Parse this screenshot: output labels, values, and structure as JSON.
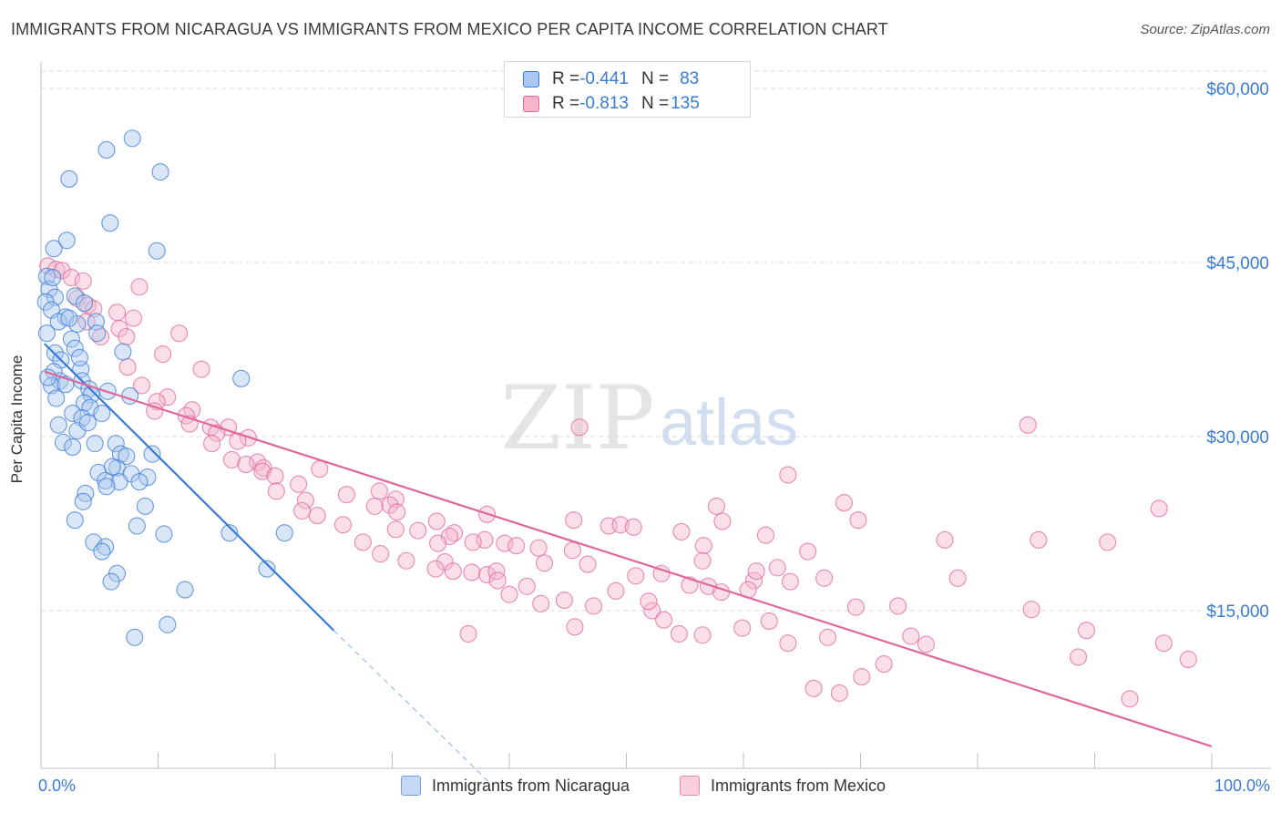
{
  "title": "IMMIGRANTS FROM NICARAGUA VS IMMIGRANTS FROM MEXICO PER CAPITA INCOME CORRELATION CHART",
  "source": "Source: ZipAtlas.com",
  "watermark": {
    "zip": "ZIP",
    "atlas": "atlas"
  },
  "colors": {
    "blue": "#3a7bd5",
    "blue_fill": "#aac8f0",
    "pink": "#e0679a",
    "pink_fill": "#f5b5cc",
    "grid": "#dddddd",
    "accent_text": "#3a7bd5"
  },
  "legend": {
    "rows": [
      {
        "r_label": "R = ",
        "r_value": "-0.441",
        "n_label": "N = ",
        "n_value": "83"
      },
      {
        "r_label": "R = ",
        "r_value": "-0.813",
        "n_label": "N = ",
        "n_value": "135"
      }
    ]
  },
  "bottom_legend": [
    "Immigrants from Nicaragua",
    "Immigrants from Mexico"
  ],
  "x_axis": {
    "min_label": "0.0%",
    "max_label": "100.0%"
  },
  "chart_data": {
    "type": "scatter",
    "title": "IMMIGRANTS FROM NICARAGUA VS IMMIGRANTS FROM MEXICO PER CAPITA INCOME CORRELATION CHART",
    "xlabel": "",
    "ylabel": "Per Capita Income",
    "xlim": [
      0,
      100
    ],
    "ylim": [
      0,
      62000
    ],
    "y_ticks": [
      15000,
      30000,
      45000,
      60000
    ],
    "y_tick_labels": [
      "$15,000",
      "$30,000",
      "$45,000",
      "$60,000"
    ],
    "x_tick_labels": [
      "0.0%",
      "100.0%"
    ],
    "grid": true,
    "legend_position": "top-center",
    "series": [
      {
        "name": "Immigrants from Nicaragua",
        "color": "#3a7bd5",
        "trend": {
          "x": [
            0.3,
            25.0
          ],
          "y": [
            38000,
            13300
          ],
          "dashed_extension_to": [
            38.5,
            0
          ]
        },
        "points": [
          [
            7.8,
            55700
          ],
          [
            5.6,
            54700
          ],
          [
            10.2,
            52800
          ],
          [
            2.4,
            52200
          ],
          [
            5.9,
            48400
          ],
          [
            2.2,
            46900
          ],
          [
            9.9,
            46000
          ],
          [
            1.1,
            46200
          ],
          [
            0.5,
            43800
          ],
          [
            0.7,
            42700
          ],
          [
            1.2,
            42000
          ],
          [
            2.9,
            42100
          ],
          [
            3.7,
            41500
          ],
          [
            0.4,
            41600
          ],
          [
            0.9,
            40900
          ],
          [
            2.1,
            40300
          ],
          [
            1.5,
            39900
          ],
          [
            3.1,
            39700
          ],
          [
            4.7,
            39900
          ],
          [
            0.5,
            38900
          ],
          [
            2.6,
            38400
          ],
          [
            4.8,
            38900
          ],
          [
            2.9,
            37600
          ],
          [
            7.0,
            37300
          ],
          [
            1.2,
            37200
          ],
          [
            1.7,
            36600
          ],
          [
            3.4,
            35800
          ],
          [
            1.1,
            35600
          ],
          [
            1.6,
            34800
          ],
          [
            0.9,
            34400
          ],
          [
            3.5,
            34800
          ],
          [
            4.1,
            34100
          ],
          [
            4.3,
            33600
          ],
          [
            1.3,
            33300
          ],
          [
            7.6,
            33500
          ],
          [
            3.7,
            32900
          ],
          [
            4.2,
            32500
          ],
          [
            2.7,
            32000
          ],
          [
            5.2,
            32000
          ],
          [
            3.5,
            31600
          ],
          [
            1.5,
            31000
          ],
          [
            3.1,
            30500
          ],
          [
            17.1,
            35000
          ],
          [
            1.9,
            29500
          ],
          [
            2.7,
            29100
          ],
          [
            4.6,
            29400
          ],
          [
            6.4,
            29400
          ],
          [
            6.8,
            28500
          ],
          [
            9.5,
            28500
          ],
          [
            7.3,
            28300
          ],
          [
            6.5,
            27300
          ],
          [
            4.9,
            26900
          ],
          [
            7.7,
            26800
          ],
          [
            9.1,
            26500
          ],
          [
            5.5,
            26200
          ],
          [
            6.7,
            26100
          ],
          [
            5.6,
            25700
          ],
          [
            3.8,
            25100
          ],
          [
            3.6,
            24400
          ],
          [
            8.9,
            24000
          ],
          [
            2.9,
            22800
          ],
          [
            8.2,
            22300
          ],
          [
            16.1,
            21700
          ],
          [
            10.5,
            21600
          ],
          [
            20.8,
            21700
          ],
          [
            4.5,
            20900
          ],
          [
            5.5,
            20500
          ],
          [
            5.2,
            20100
          ],
          [
            6.5,
            18200
          ],
          [
            19.3,
            18600
          ],
          [
            6.0,
            17500
          ],
          [
            12.3,
            16800
          ],
          [
            10.8,
            13800
          ],
          [
            8.0,
            12700
          ],
          [
            1.0,
            43700
          ],
          [
            2.4,
            40200
          ],
          [
            3.3,
            36800
          ],
          [
            5.7,
            33900
          ],
          [
            4.0,
            31200
          ],
          [
            0.6,
            35100
          ],
          [
            2.1,
            34500
          ],
          [
            6.1,
            27400
          ],
          [
            8.4,
            26100
          ]
        ]
      },
      {
        "name": "Immigrants from Mexico",
        "color": "#e0679a",
        "trend": {
          "x": [
            0.3,
            100.0
          ],
          "y": [
            35600,
            3300
          ]
        },
        "points": [
          [
            0.6,
            44700
          ],
          [
            1.3,
            44400
          ],
          [
            1.8,
            44300
          ],
          [
            2.6,
            43700
          ],
          [
            3.6,
            43400
          ],
          [
            8.4,
            42900
          ],
          [
            3.1,
            41900
          ],
          [
            4.0,
            41300
          ],
          [
            4.5,
            41000
          ],
          [
            6.5,
            40700
          ],
          [
            7.9,
            40200
          ],
          [
            6.7,
            39300
          ],
          [
            5.1,
            38600
          ],
          [
            11.8,
            38900
          ],
          [
            7.3,
            38600
          ],
          [
            10.4,
            37100
          ],
          [
            7.4,
            36000
          ],
          [
            13.7,
            35800
          ],
          [
            8.6,
            34400
          ],
          [
            10.8,
            33400
          ],
          [
            9.9,
            33000
          ],
          [
            12.9,
            32300
          ],
          [
            9.7,
            32200
          ],
          [
            12.4,
            31800
          ],
          [
            12.7,
            31100
          ],
          [
            14.5,
            30800
          ],
          [
            16.0,
            30800
          ],
          [
            15.0,
            30300
          ],
          [
            17.7,
            29900
          ],
          [
            16.8,
            29600
          ],
          [
            14.6,
            29400
          ],
          [
            46.0,
            30800
          ],
          [
            84.3,
            31000
          ],
          [
            16.3,
            28000
          ],
          [
            18.5,
            27800
          ],
          [
            17.5,
            27600
          ],
          [
            19.0,
            27300
          ],
          [
            23.8,
            27200
          ],
          [
            18.9,
            27000
          ],
          [
            20.0,
            26600
          ],
          [
            22.0,
            25900
          ],
          [
            20.1,
            25300
          ],
          [
            28.9,
            25300
          ],
          [
            26.1,
            25000
          ],
          [
            22.6,
            24500
          ],
          [
            30.3,
            24600
          ],
          [
            29.8,
            24100
          ],
          [
            22.3,
            23600
          ],
          [
            28.5,
            24000
          ],
          [
            23.6,
            23200
          ],
          [
            30.4,
            23500
          ],
          [
            38.1,
            23300
          ],
          [
            33.8,
            22700
          ],
          [
            45.5,
            22800
          ],
          [
            25.8,
            22400
          ],
          [
            30.3,
            22000
          ],
          [
            32.2,
            21900
          ],
          [
            35.3,
            21700
          ],
          [
            34.9,
            21400
          ],
          [
            37.9,
            21100
          ],
          [
            36.9,
            20900
          ],
          [
            33.9,
            20800
          ],
          [
            39.6,
            20800
          ],
          [
            40.6,
            20600
          ],
          [
            42.5,
            20400
          ],
          [
            45.4,
            20200
          ],
          [
            48.5,
            22300
          ],
          [
            49.5,
            22400
          ],
          [
            50.6,
            22200
          ],
          [
            54.7,
            21800
          ],
          [
            56.6,
            20600
          ],
          [
            34.5,
            19200
          ],
          [
            31.2,
            19300
          ],
          [
            33.7,
            18600
          ],
          [
            35.2,
            18400
          ],
          [
            36.8,
            18300
          ],
          [
            38.1,
            18100
          ],
          [
            38.9,
            18400
          ],
          [
            43.0,
            19100
          ],
          [
            46.7,
            19000
          ],
          [
            50.8,
            18000
          ],
          [
            53.0,
            18200
          ],
          [
            55.4,
            17200
          ],
          [
            57.0,
            17100
          ],
          [
            60.9,
            17600
          ],
          [
            62.9,
            18700
          ],
          [
            64.0,
            17500
          ],
          [
            66.9,
            17800
          ],
          [
            69.6,
            15300
          ],
          [
            73.2,
            15400
          ],
          [
            74.3,
            12800
          ],
          [
            72.0,
            10400
          ],
          [
            75.6,
            12100
          ],
          [
            78.3,
            17800
          ],
          [
            77.2,
            21100
          ],
          [
            84.6,
            15100
          ],
          [
            85.2,
            21100
          ],
          [
            88.6,
            11000
          ],
          [
            89.3,
            13300
          ],
          [
            93.0,
            7400
          ],
          [
            91.1,
            20900
          ],
          [
            52.2,
            15000
          ],
          [
            53.2,
            14200
          ],
          [
            54.5,
            13000
          ],
          [
            56.5,
            12900
          ],
          [
            58.1,
            16600
          ],
          [
            59.9,
            13500
          ],
          [
            60.4,
            16800
          ],
          [
            62.2,
            14100
          ],
          [
            63.8,
            12200
          ],
          [
            67.2,
            12700
          ],
          [
            68.2,
            7900
          ],
          [
            70.1,
            9300
          ],
          [
            66.0,
            8300
          ],
          [
            40.0,
            16400
          ],
          [
            41.5,
            17100
          ],
          [
            44.7,
            15900
          ],
          [
            47.2,
            15400
          ],
          [
            49.1,
            16700
          ],
          [
            51.9,
            15800
          ],
          [
            39.0,
            17600
          ],
          [
            42.7,
            15600
          ],
          [
            36.5,
            13000
          ],
          [
            45.6,
            13600
          ],
          [
            56.5,
            19300
          ],
          [
            65.5,
            20100
          ],
          [
            58.2,
            22700
          ],
          [
            63.8,
            26700
          ],
          [
            68.6,
            24300
          ],
          [
            61.9,
            21500
          ],
          [
            57.7,
            24000
          ],
          [
            69.8,
            22800
          ],
          [
            61.1,
            18400
          ],
          [
            27.5,
            20900
          ],
          [
            29.0,
            19900
          ],
          [
            95.5,
            23800
          ],
          [
            95.9,
            12200
          ],
          [
            98.0,
            10800
          ],
          [
            3.9,
            39900
          ]
        ]
      }
    ]
  }
}
